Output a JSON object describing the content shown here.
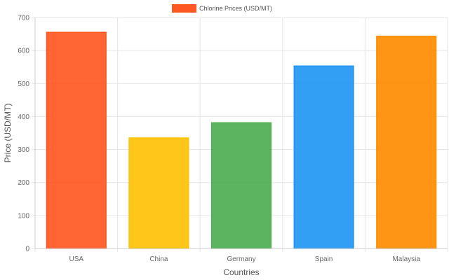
{
  "chart_data": {
    "type": "bar",
    "categories": [
      "USA",
      "China",
      "Germany",
      "Spain",
      "Malaysia"
    ],
    "series": [
      {
        "name": "Chlorine Prices (USD/MT)",
        "values": [
          655,
          335,
          381,
          553,
          643
        ]
      }
    ],
    "bar_colors": [
      "#FF5722",
      "#FFC107",
      "#4CAF50",
      "#2196F3",
      "#FF8C00"
    ],
    "legend_color": "#FF5722",
    "xlabel": "Countries",
    "ylabel": "Price (USD/MT)",
    "ylim": [
      0,
      700
    ],
    "yticks": [
      0,
      100,
      200,
      300,
      400,
      500,
      600,
      700
    ],
    "grid": true,
    "legend_position": "top"
  }
}
